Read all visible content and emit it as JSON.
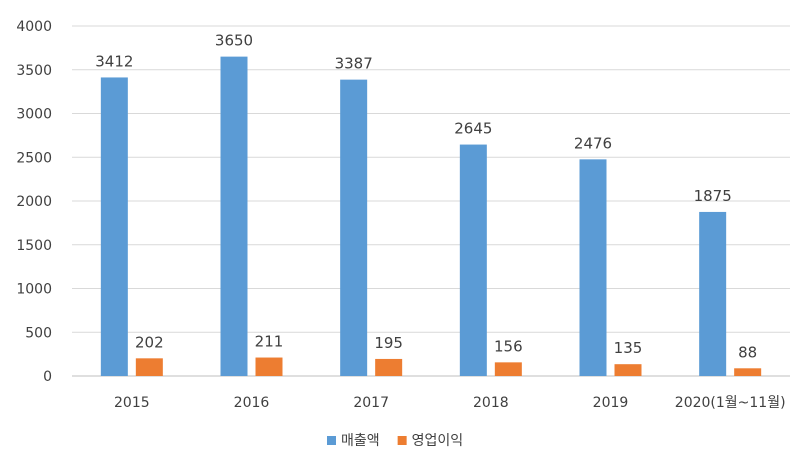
{
  "chart_data": {
    "type": "bar",
    "categories": [
      "2015",
      "2016",
      "2017",
      "2018",
      "2019",
      "2020(1월~11월)"
    ],
    "series": [
      {
        "name": "매출액",
        "color": "#5b9bd5",
        "values": [
          3412,
          3650,
          3387,
          2645,
          2476,
          1875
        ]
      },
      {
        "name": "영업이익",
        "color": "#ed7d31",
        "values": [
          202,
          211,
          195,
          156,
          135,
          88
        ]
      }
    ],
    "ylim": [
      0,
      4000
    ],
    "yticks": [
      "0",
      "500",
      "1000",
      "1500",
      "2000",
      "2500",
      "3000",
      "3500",
      "4000"
    ],
    "grid": true,
    "legend": "bottom",
    "data_labels": true
  }
}
